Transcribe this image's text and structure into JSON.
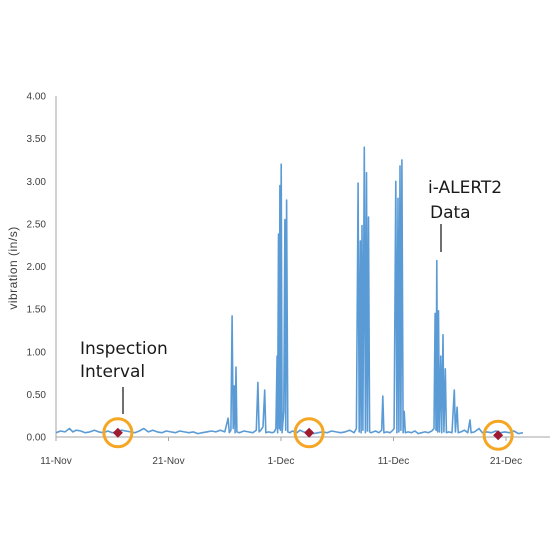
{
  "chart_data": {
    "type": "line",
    "title": "",
    "ylabel": "vibration (in/s)",
    "xlabel": "",
    "ylim": [
      0,
      4
    ],
    "yticks": [
      "0.00",
      "0.50",
      "1.00",
      "1.50",
      "2.00",
      "2.50",
      "3.00",
      "3.50",
      "4.00"
    ],
    "xticks": [
      {
        "label": "11-Nov",
        "day": 0
      },
      {
        "label": "21-Nov",
        "day": 10
      },
      {
        "label": "1-Dec",
        "day": 20
      },
      {
        "label": "11-Dec",
        "day": 30
      },
      {
        "label": "21-Dec",
        "day": 40
      }
    ],
    "xlim": [
      0,
      41.5
    ],
    "grid": false,
    "colors": {
      "series": "#5b9bd5",
      "marker": "#9e1b32",
      "circle": "#f5a623",
      "axis": "#a6a6a6",
      "pointer": "#404040"
    },
    "series": [
      {
        "name": "",
        "points": [
          [
            0,
            0.05
          ],
          [
            0.4,
            0.07
          ],
          [
            0.8,
            0.06
          ],
          [
            1.2,
            0.1
          ],
          [
            1.5,
            0.06
          ],
          [
            1.8,
            0.08
          ],
          [
            2.2,
            0.07
          ],
          [
            2.6,
            0.05
          ],
          [
            3.0,
            0.06
          ],
          [
            3.4,
            0.08
          ],
          [
            3.8,
            0.06
          ],
          [
            4.2,
            0.05
          ],
          [
            4.6,
            0.07
          ],
          [
            5.0,
            0.05
          ],
          [
            5.4,
            0.06
          ],
          [
            5.8,
            0.08
          ],
          [
            6.2,
            0.07
          ],
          [
            6.6,
            0.06
          ],
          [
            7.0,
            0.05
          ],
          [
            7.4,
            0.07
          ],
          [
            7.8,
            0.1
          ],
          [
            8.2,
            0.06
          ],
          [
            8.6,
            0.08
          ],
          [
            9.0,
            0.06
          ],
          [
            9.4,
            0.05
          ],
          [
            9.8,
            0.07
          ],
          [
            10.2,
            0.06
          ],
          [
            10.6,
            0.05
          ],
          [
            11.0,
            0.07
          ],
          [
            11.4,
            0.06
          ],
          [
            11.8,
            0.05
          ],
          [
            12.2,
            0.06
          ],
          [
            12.6,
            0.04
          ],
          [
            13.0,
            0.05
          ],
          [
            13.4,
            0.06
          ],
          [
            13.8,
            0.07
          ],
          [
            14.2,
            0.06
          ],
          [
            14.6,
            0.08
          ],
          [
            15.0,
            0.06
          ],
          [
            15.3,
            0.22
          ],
          [
            15.4,
            0.05
          ],
          [
            15.55,
            0.08
          ],
          [
            15.65,
            1.42
          ],
          [
            15.75,
            0.1
          ],
          [
            15.85,
            0.6
          ],
          [
            15.92,
            0.05
          ],
          [
            16.0,
            0.82
          ],
          [
            16.08,
            0.06
          ],
          [
            16.3,
            0.05
          ],
          [
            16.7,
            0.07
          ],
          [
            17.1,
            0.06
          ],
          [
            17.5,
            0.05
          ],
          [
            17.8,
            0.08
          ],
          [
            17.95,
            0.64
          ],
          [
            18.05,
            0.06
          ],
          [
            18.2,
            0.08
          ],
          [
            18.4,
            0.12
          ],
          [
            18.55,
            0.55
          ],
          [
            18.65,
            0.05
          ],
          [
            18.9,
            0.06
          ],
          [
            19.2,
            0.05
          ],
          [
            19.4,
            0.06
          ],
          [
            19.55,
            0.1
          ],
          [
            19.65,
            0.95
          ],
          [
            19.7,
            0.05
          ],
          [
            19.78,
            2.38
          ],
          [
            19.85,
            0.1
          ],
          [
            19.9,
            2.95
          ],
          [
            19.95,
            0.08
          ],
          [
            20.02,
            3.2
          ],
          [
            20.1,
            0.05
          ],
          [
            20.25,
            0.3
          ],
          [
            20.35,
            2.55
          ],
          [
            20.42,
            0.08
          ],
          [
            20.5,
            2.78
          ],
          [
            20.6,
            0.06
          ],
          [
            20.8,
            0.05
          ],
          [
            21.0,
            0.07
          ],
          [
            21.4,
            0.05
          ],
          [
            21.7,
            0.08
          ],
          [
            22.0,
            0.06
          ],
          [
            22.3,
            0.05
          ],
          [
            22.6,
            0.07
          ],
          [
            22.9,
            0.04
          ],
          [
            23.3,
            0.05
          ],
          [
            23.7,
            0.06
          ],
          [
            24.1,
            0.05
          ],
          [
            24.5,
            0.07
          ],
          [
            24.9,
            0.06
          ],
          [
            25.3,
            0.05
          ],
          [
            25.7,
            0.06
          ],
          [
            26.1,
            0.08
          ],
          [
            26.5,
            0.05
          ],
          [
            26.7,
            0.1
          ],
          [
            26.85,
            2.98
          ],
          [
            26.95,
            0.06
          ],
          [
            27.05,
            2.3
          ],
          [
            27.12,
            0.05
          ],
          [
            27.2,
            2.48
          ],
          [
            27.28,
            0.08
          ],
          [
            27.4,
            3.4
          ],
          [
            27.5,
            0.05
          ],
          [
            27.6,
            3.1
          ],
          [
            27.68,
            0.07
          ],
          [
            27.78,
            2.58
          ],
          [
            27.88,
            0.06
          ],
          [
            28.0,
            0.05
          ],
          [
            28.4,
            0.07
          ],
          [
            28.7,
            0.05
          ],
          [
            28.95,
            0.08
          ],
          [
            29.05,
            0.48
          ],
          [
            29.15,
            0.05
          ],
          [
            29.4,
            0.06
          ],
          [
            29.7,
            0.05
          ],
          [
            29.95,
            0.08
          ],
          [
            30.05,
            0.1
          ],
          [
            30.2,
            3.0
          ],
          [
            30.3,
            0.05
          ],
          [
            30.4,
            2.8
          ],
          [
            30.48,
            0.06
          ],
          [
            30.58,
            3.18
          ],
          [
            30.66,
            0.08
          ],
          [
            30.75,
            3.25
          ],
          [
            30.85,
            0.05
          ],
          [
            30.95,
            0.3
          ],
          [
            31.05,
            0.05
          ],
          [
            31.3,
            0.06
          ],
          [
            31.6,
            0.05
          ],
          [
            31.9,
            0.07
          ],
          [
            32.2,
            0.04
          ],
          [
            32.5,
            0.05
          ],
          [
            32.8,
            0.06
          ],
          [
            33.1,
            0.05
          ],
          [
            33.4,
            0.07
          ],
          [
            33.6,
            0.1
          ],
          [
            33.7,
            1.45
          ],
          [
            33.78,
            0.08
          ],
          [
            33.85,
            2.07
          ],
          [
            33.92,
            0.06
          ],
          [
            34.0,
            1.48
          ],
          [
            34.08,
            0.06
          ],
          [
            34.2,
            0.95
          ],
          [
            34.28,
            0.05
          ],
          [
            34.4,
            1.2
          ],
          [
            34.48,
            0.06
          ],
          [
            34.6,
            0.8
          ],
          [
            34.7,
            0.05
          ],
          [
            34.9,
            0.06
          ],
          [
            35.2,
            0.05
          ],
          [
            35.4,
            0.55
          ],
          [
            35.5,
            0.06
          ],
          [
            35.65,
            0.35
          ],
          [
            35.75,
            0.05
          ],
          [
            36.0,
            0.06
          ],
          [
            36.3,
            0.08
          ],
          [
            36.6,
            0.05
          ],
          [
            36.8,
            0.2
          ],
          [
            36.9,
            0.05
          ],
          [
            37.2,
            0.06
          ],
          [
            37.6,
            0.1
          ],
          [
            37.9,
            0.05
          ],
          [
            38.3,
            0.06
          ],
          [
            38.7,
            0.05
          ],
          [
            39.1,
            0.07
          ],
          [
            39.5,
            0.05
          ],
          [
            39.9,
            0.06
          ],
          [
            40.3,
            0.05
          ],
          [
            40.7,
            0.07
          ],
          [
            41.1,
            0.04
          ],
          [
            41.5,
            0.05
          ]
        ]
      }
    ],
    "inspection_points": [
      {
        "day": 5.5,
        "value": 0.05
      },
      {
        "day": 22.5,
        "value": 0.05
      },
      {
        "day": 39.3,
        "value": 0.02
      }
    ],
    "annotations": [
      {
        "lines": [
          "Inspection",
          "Interval"
        ]
      },
      {
        "lines": [
          "i-ALERT2",
          "Data"
        ]
      }
    ]
  }
}
